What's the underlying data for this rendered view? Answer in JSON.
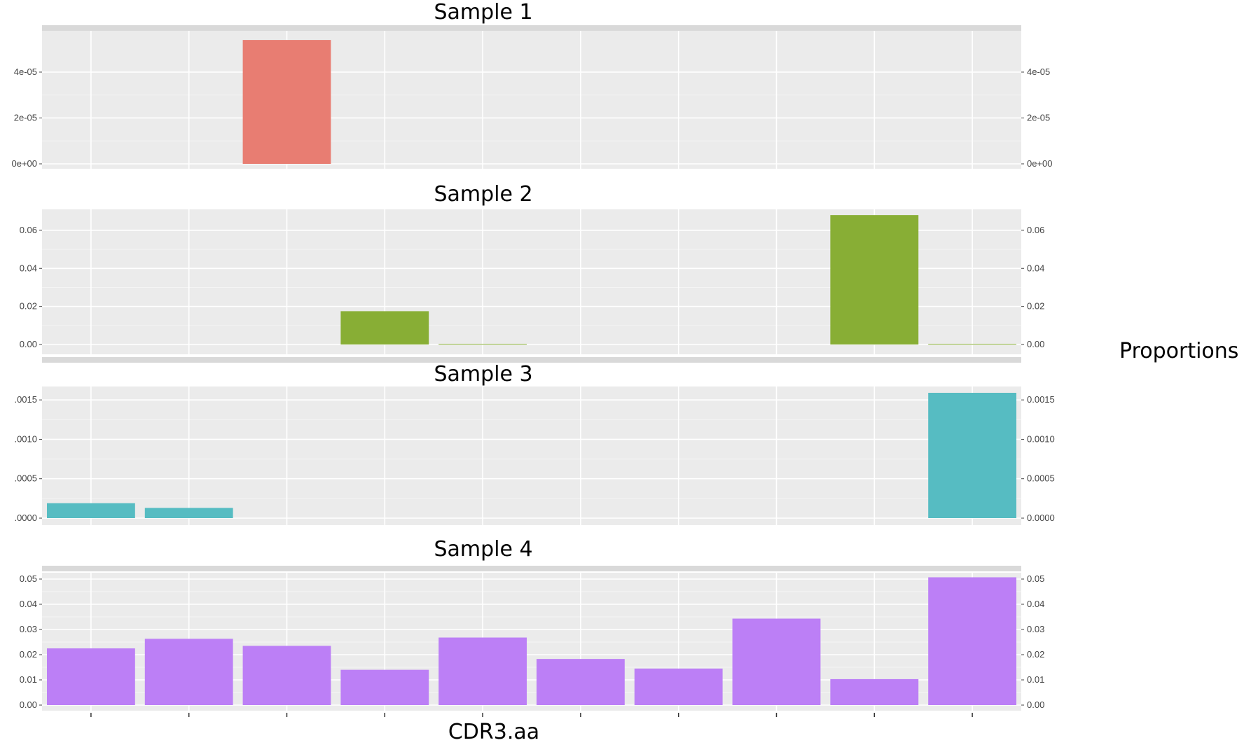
{
  "chart_data": {
    "type": "bar",
    "layout": "faceted-vertical",
    "xlabel": "CDR3.aa",
    "ylabel": "Proportions",
    "category_count": 10,
    "grid": true,
    "legend": "none",
    "panels": [
      {
        "title": "Sample 1",
        "color": "#E87D72",
        "ylim": [
          0,
          5.8e-05
        ],
        "ticks": [
          0,
          2e-05,
          4e-05
        ],
        "tick_labels": [
          "0e+00",
          "2e-05",
          "4e-05"
        ],
        "values": [
          0,
          0,
          5.4e-05,
          0,
          0,
          0,
          0,
          0,
          0,
          0
        ]
      },
      {
        "title": "Sample 2",
        "color": "#88AE35",
        "ylim": [
          0,
          0.071
        ],
        "ticks": [
          0,
          0.02,
          0.04,
          0.06
        ],
        "tick_labels": [
          "0.00",
          "0.02",
          "0.04",
          "0.06"
        ],
        "values": [
          0,
          0,
          0,
          0.0175,
          0.0003,
          0,
          0,
          0,
          0.068,
          0.0003
        ]
      },
      {
        "title": "Sample 3",
        "color": "#56BCC2",
        "ylim": [
          0,
          0.00167
        ],
        "ticks": [
          0,
          0.0005,
          0.001,
          0.0015
        ],
        "tick_labels": [
          ".0000",
          ".0005",
          ".0010",
          ".0015"
        ],
        "tick_labels_right": [
          "0.0000",
          "0.0005",
          "0.0010",
          "0.0015"
        ],
        "values": [
          0.00019,
          0.00013,
          0,
          0,
          0,
          0,
          0,
          0,
          0,
          0.00159
        ]
      },
      {
        "title": "Sample 4",
        "color": "#BC7FF6",
        "ylim": [
          0,
          0.0525
        ],
        "ticks": [
          0,
          0.01,
          0.02,
          0.03,
          0.04,
          0.05
        ],
        "tick_labels": [
          "0.00",
          "0.01",
          "0.02",
          "0.03",
          "0.04",
          "0.05"
        ],
        "values": [
          0.0225,
          0.0263,
          0.0235,
          0.014,
          0.0268,
          0.0183,
          0.0145,
          0.0343,
          0.0103,
          0.0507
        ]
      }
    ]
  }
}
